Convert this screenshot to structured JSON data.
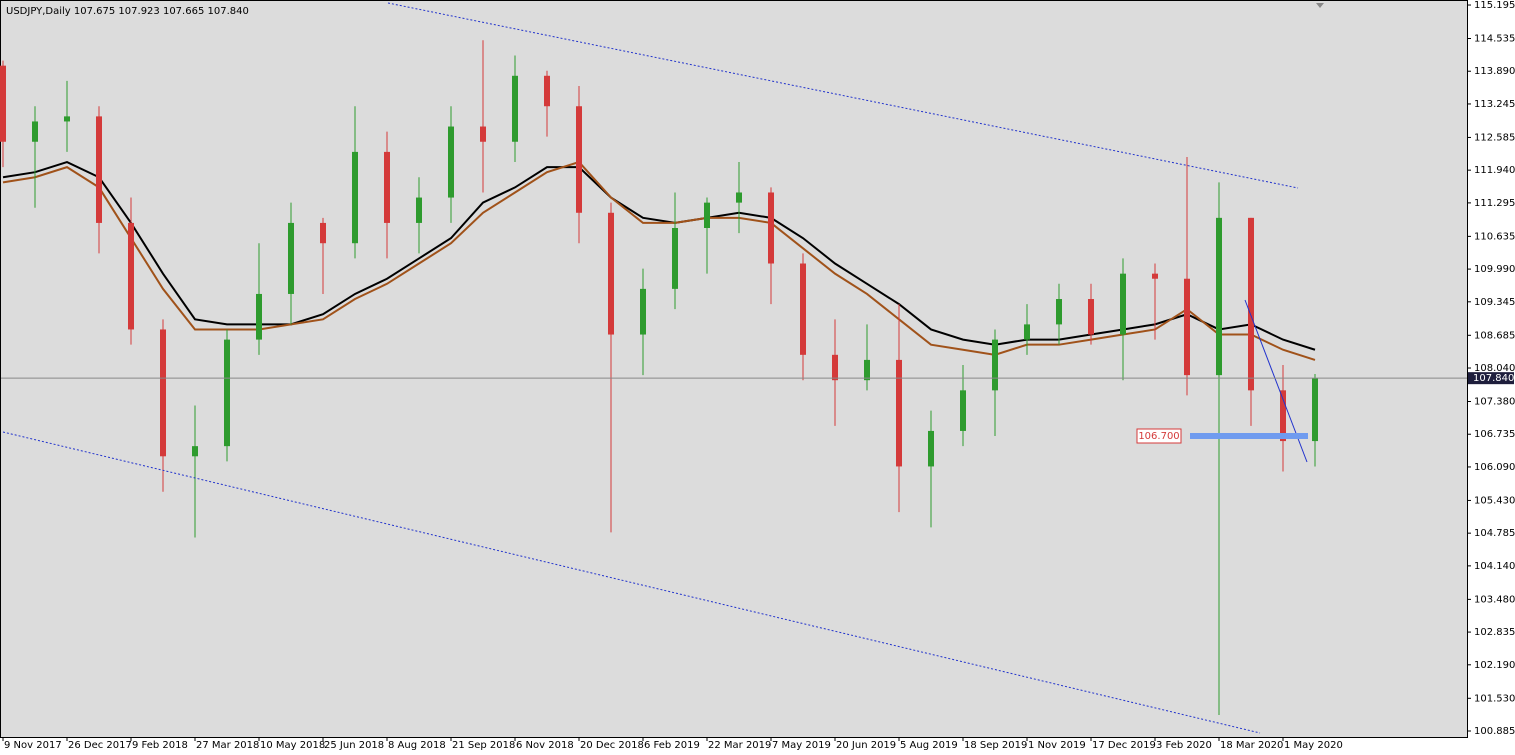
{
  "chart_data": {
    "type": "candlestick",
    "title": "USDJPY,Daily  107.675 107.923 107.665 107.840",
    "categories": [
      "9 Nov 2017",
      null,
      "26 Dec 2017",
      null,
      "9 Feb 2018",
      null,
      "27 Mar 2018",
      null,
      "10 May 2018",
      null,
      "25 Jun 2018",
      null,
      "8 Aug 2018",
      null,
      "21 Sep 2018",
      null,
      "6 Nov 2018",
      null,
      "20 Dec 2018",
      null,
      "6 Feb 2019",
      null,
      "22 Mar 2019",
      null,
      "7 May 2019",
      null,
      "20 Jun 2019",
      null,
      "5 Aug 2019",
      null,
      "18 Sep 2019",
      null,
      "1 Nov 2019",
      null,
      "17 Dec 2019",
      null,
      "3 Feb 2020",
      null,
      "18 Mar 2020",
      null,
      "1 May 2020",
      null
    ],
    "open": [
      114.0,
      112.5,
      112.9,
      113.0,
      110.9,
      108.8,
      106.3,
      106.5,
      108.6,
      109.5,
      110.9,
      110.5,
      112.3,
      110.9,
      111.4,
      112.8,
      112.5,
      113.8,
      113.2,
      111.1,
      108.7,
      109.6,
      110.8,
      111.3,
      111.5,
      110.1,
      108.3,
      107.8,
      108.2,
      106.1,
      106.8,
      107.6,
      108.6,
      108.9,
      109.4,
      108.7,
      109.9,
      109.8,
      107.9,
      111.0,
      107.6,
      106.6
    ],
    "high": [
      114.1,
      113.2,
      113.7,
      113.2,
      111.4,
      109.0,
      107.3,
      108.8,
      110.5,
      111.3,
      111.0,
      113.2,
      112.7,
      111.8,
      113.2,
      114.5,
      114.2,
      113.9,
      113.6,
      111.3,
      110.0,
      111.5,
      111.4,
      112.1,
      111.6,
      110.3,
      109.0,
      108.9,
      109.3,
      107.2,
      108.1,
      108.8,
      109.3,
      109.7,
      109.7,
      110.2,
      110.1,
      112.2,
      111.7,
      111.0,
      108.1,
      107.923
    ],
    "low": [
      112.0,
      111.2,
      112.3,
      110.3,
      108.5,
      105.6,
      104.7,
      106.2,
      108.3,
      108.9,
      109.5,
      110.2,
      110.2,
      110.3,
      110.9,
      111.5,
      112.1,
      112.6,
      110.5,
      104.8,
      107.9,
      109.2,
      109.9,
      110.7,
      109.3,
      107.8,
      106.9,
      107.6,
      105.2,
      104.9,
      106.5,
      106.7,
      108.3,
      108.5,
      108.5,
      107.8,
      108.6,
      107.5,
      101.2,
      106.9,
      106.0,
      106.1
    ],
    "close": [
      112.5,
      112.9,
      113.0,
      110.9,
      108.8,
      106.3,
      106.5,
      108.6,
      109.5,
      110.9,
      110.5,
      112.3,
      110.9,
      111.4,
      112.8,
      112.5,
      113.8,
      113.2,
      111.1,
      108.7,
      109.6,
      110.8,
      111.3,
      111.5,
      110.1,
      108.3,
      107.8,
      108.2,
      106.1,
      106.8,
      107.6,
      108.6,
      108.9,
      109.4,
      108.7,
      109.9,
      109.8,
      107.9,
      111.0,
      107.6,
      106.6,
      107.84
    ],
    "bull_color": "#2e9b2e",
    "bear_color": "#d43a3a",
    "ma_lines": [
      {
        "color": "#000000",
        "values": [
          111.8,
          111.9,
          112.1,
          111.8,
          110.9,
          109.9,
          109.0,
          108.9,
          108.9,
          108.9,
          109.1,
          109.5,
          109.8,
          110.2,
          110.6,
          111.3,
          111.6,
          112.0,
          112.0,
          111.4,
          111.0,
          110.9,
          111.0,
          111.1,
          111.0,
          110.6,
          110.1,
          109.7,
          109.3,
          108.8,
          108.6,
          108.5,
          108.6,
          108.6,
          108.7,
          108.8,
          108.9,
          109.1,
          108.8,
          108.9,
          108.6,
          108.4
        ]
      },
      {
        "color": "#a0521a",
        "values": [
          111.7,
          111.8,
          112.0,
          111.6,
          110.6,
          109.6,
          108.8,
          108.8,
          108.8,
          108.9,
          109.0,
          109.4,
          109.7,
          110.1,
          110.5,
          111.1,
          111.5,
          111.9,
          112.1,
          111.4,
          110.9,
          110.9,
          111.0,
          111.0,
          110.9,
          110.4,
          109.9,
          109.5,
          109.0,
          108.5,
          108.4,
          108.3,
          108.5,
          108.5,
          108.6,
          108.7,
          108.8,
          109.2,
          108.7,
          108.7,
          108.4,
          108.2
        ]
      }
    ],
    "ylim": [
      100.767,
      115.294
    ],
    "yticks": [
      115.195,
      114.535,
      {
        "value": 113.89,
        "label": "113.890"
      },
      113.245,
      112.585,
      {
        "value": 111.94,
        "label": "111.940"
      },
      111.295,
      110.635,
      {
        "value": 109.99,
        "label": "109.990"
      },
      109.345,
      108.685,
      {
        "value": 108.04,
        "label": "108.040"
      },
      {
        "value": 107.38,
        "label": "107.380"
      },
      106.735,
      {
        "value": 106.09,
        "label": "106.090"
      },
      {
        "value": 105.43,
        "label": "105.430"
      },
      104.785,
      {
        "value": 104.14,
        "label": "104.140"
      },
      {
        "value": 103.48,
        "label": "103.480"
      },
      102.835,
      {
        "value": 102.19,
        "label": "102.190"
      },
      {
        "value": 101.53,
        "label": "101.530"
      },
      100.885
    ],
    "last_price": {
      "value": 107.84,
      "label": "107.840"
    },
    "level": {
      "value": 106.7,
      "label": "106.700"
    }
  }
}
